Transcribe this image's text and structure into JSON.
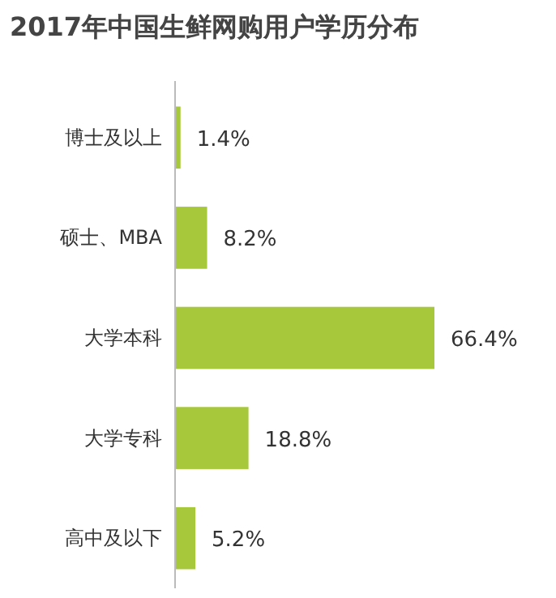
{
  "chart_data": {
    "type": "bar",
    "orientation": "horizontal",
    "title": "2017年中国生鲜网购用户学历分布",
    "categories": [
      "博士及以上",
      "硕士、MBA",
      "大学本科",
      "大学专科",
      "高中及以下"
    ],
    "values": [
      1.4,
      8.2,
      66.4,
      18.8,
      5.2
    ],
    "value_labels": [
      "1.4%",
      "8.2%",
      "66.4%",
      "18.8%",
      "5.2%"
    ],
    "color": "#a6c83a"
  }
}
